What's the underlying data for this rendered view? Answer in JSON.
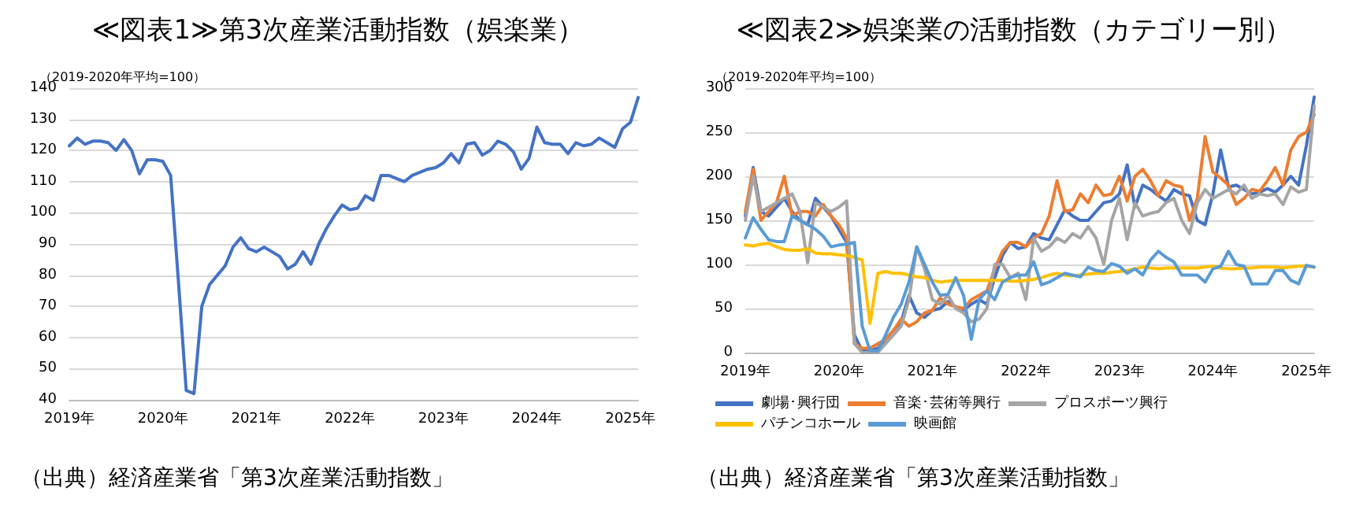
{
  "chart_data": [
    {
      "type": "line",
      "title": "≪図表1≫第3次産業活動指数（娯楽業）",
      "subtitle": "（2019-2020年平均=100）",
      "annotations": [
        "（出典）経済産業省「第3次産業活動指数」"
      ],
      "categories": [
        "2019年",
        null,
        null,
        null,
        null,
        null,
        null,
        null,
        null,
        null,
        null,
        null,
        "2020年",
        null,
        null,
        null,
        null,
        null,
        null,
        null,
        null,
        null,
        null,
        null,
        "2021年",
        null,
        null,
        null,
        null,
        null,
        null,
        null,
        null,
        null,
        null,
        null,
        "2022年",
        null,
        null,
        null,
        null,
        null,
        null,
        null,
        null,
        null,
        null,
        null,
        "2023年",
        null,
        null,
        null,
        null,
        null,
        null,
        null,
        null,
        null,
        null,
        null,
        "2024年",
        null,
        null,
        null,
        null,
        null,
        null,
        null,
        null,
        null,
        null,
        null,
        "2025年",
        null
      ],
      "series": [
        {
          "color": "#4472c4",
          "values": [
            121.5,
            124,
            122,
            123,
            123,
            122.5,
            120,
            123.5,
            120,
            112.5,
            117,
            117,
            116.5,
            112,
            78,
            43,
            42,
            70,
            77,
            80,
            83,
            89,
            92,
            88.5,
            87.5,
            89,
            87.5,
            86,
            82,
            83.5,
            87.5,
            83.5,
            90,
            95,
            99,
            102.5,
            101,
            101.5,
            105.5,
            104,
            112,
            112,
            111,
            110,
            112,
            113,
            114,
            114.5,
            116,
            119,
            116,
            122,
            122.5,
            118.5,
            120,
            123,
            122,
            119.5,
            114,
            117.5,
            127.5,
            122.5,
            122,
            122,
            119,
            122.5,
            121.5,
            122,
            124,
            122.5,
            121,
            127,
            129,
            137
          ]
        }
      ],
      "ylim": [
        40,
        140
      ],
      "yticks": [
        40,
        50,
        60,
        70,
        80,
        90,
        100,
        110,
        120,
        130,
        140
      ],
      "grid": "y",
      "legend": false,
      "marker": "none",
      "line_style": "solid"
    },
    {
      "type": "line",
      "title": "≪図表2≫娯楽業の活動指数（カテゴリー別）",
      "subtitle": "（2019-2020年平均=100）",
      "annotations": [
        "（出典）経済産業省「第3次産業活動指数」"
      ],
      "categories": [
        "2019年",
        null,
        null,
        null,
        null,
        null,
        null,
        null,
        null,
        null,
        null,
        null,
        "2020年",
        null,
        null,
        null,
        null,
        null,
        null,
        null,
        null,
        null,
        null,
        null,
        "2021年",
        null,
        null,
        null,
        null,
        null,
        null,
        null,
        null,
        null,
        null,
        null,
        "2022年",
        null,
        null,
        null,
        null,
        null,
        null,
        null,
        null,
        null,
        null,
        null,
        "2023年",
        null,
        null,
        null,
        null,
        null,
        null,
        null,
        null,
        null,
        null,
        null,
        "2024年",
        null,
        null,
        null,
        null,
        null,
        null,
        null,
        null,
        null,
        null,
        null,
        "2025年",
        null
      ],
      "series": [
        {
          "name": "劇場･興行団",
          "color": "#4472c4",
          "values": [
            155,
            210,
            160,
            155,
            165,
            175,
            160,
            150,
            145,
            175,
            165,
            155,
            140,
            125,
            20,
            2,
            2,
            5,
            15,
            25,
            35,
            65,
            45,
            40,
            48,
            50,
            58,
            52,
            48,
            55,
            60,
            55,
            85,
            110,
            125,
            118,
            120,
            135,
            130,
            128,
            145,
            162,
            155,
            150,
            150,
            160,
            170,
            172,
            180,
            213,
            165,
            190,
            185,
            178,
            172,
            185,
            180,
            178,
            150,
            145,
            180,
            230,
            188,
            190,
            185,
            180,
            182,
            186,
            182,
            190,
            200,
            190,
            235,
            290
          ]
        },
        {
          "name": "音楽･芸術等興行",
          "color": "#ed7d31",
          "values": [
            160,
            208,
            150,
            160,
            170,
            200,
            155,
            160,
            160,
            155,
            168,
            155,
            145,
            130,
            10,
            5,
            5,
            10,
            15,
            25,
            38,
            30,
            35,
            45,
            48,
            62,
            55,
            52,
            50,
            60,
            65,
            70,
            95,
            115,
            125,
            125,
            120,
            130,
            135,
            155,
            195,
            160,
            162,
            180,
            170,
            190,
            178,
            180,
            200,
            172,
            200,
            208,
            195,
            178,
            195,
            190,
            188,
            150,
            175,
            245,
            205,
            198,
            190,
            168,
            175,
            185,
            183,
            195,
            210,
            190,
            230,
            245,
            250,
            270
          ]
        },
        {
          "name": "プロスポーツ興行",
          "color": "#a5a5a5",
          "values": [
            150,
            200,
            160,
            165,
            170,
            175,
            180,
            160,
            102,
            170,
            165,
            160,
            165,
            172,
            10,
            0,
            0,
            0,
            10,
            20,
            30,
            60,
            120,
            95,
            60,
            55,
            65,
            50,
            45,
            35,
            38,
            50,
            100,
            100,
            85,
            90,
            60,
            130,
            115,
            120,
            130,
            125,
            135,
            130,
            143,
            130,
            100,
            150,
            175,
            128,
            170,
            155,
            158,
            160,
            170,
            175,
            150,
            135,
            170,
            185,
            175,
            180,
            185,
            180,
            190,
            175,
            180,
            178,
            180,
            168,
            188,
            182,
            185,
            280
          ]
        },
        {
          "name": "パチンコホール",
          "color": "#ffc000",
          "values": [
            122,
            121,
            123,
            124,
            120,
            117,
            116,
            116,
            118,
            113,
            112,
            112,
            111,
            110,
            108,
            105,
            33,
            90,
            92,
            90,
            90,
            88,
            86,
            85,
            82,
            80,
            81,
            82,
            82,
            82,
            82,
            82,
            82,
            82,
            81,
            81,
            82,
            83,
            85,
            88,
            90,
            88,
            87,
            88,
            89,
            90,
            90,
            91,
            92,
            93,
            95,
            97,
            96,
            95,
            96,
            96,
            96,
            96,
            96,
            97,
            98,
            96,
            95,
            95,
            96,
            96,
            97,
            97,
            97,
            96,
            97,
            98,
            98,
            97
          ]
        },
        {
          "name": "映画館",
          "color": "#5b9bd5",
          "values": [
            130,
            153,
            140,
            128,
            126,
            126,
            155,
            150,
            145,
            140,
            132,
            120,
            122,
            123,
            125,
            30,
            2,
            2,
            20,
            40,
            55,
            80,
            120,
            100,
            80,
            65,
            66,
            85,
            65,
            15,
            60,
            70,
            60,
            80,
            85,
            88,
            88,
            103,
            77,
            80,
            85,
            90,
            88,
            86,
            97,
            93,
            92,
            101,
            98,
            90,
            95,
            88,
            105,
            115,
            108,
            103,
            88,
            88,
            88,
            80,
            95,
            98,
            115,
            100,
            98,
            78,
            78,
            78,
            93,
            93,
            82,
            78,
            99,
            97
          ]
        }
      ],
      "ylim": [
        0,
        300
      ],
      "yticks": [
        0,
        50,
        100,
        150,
        200,
        250,
        300
      ],
      "grid": "y",
      "legend": "bottom",
      "marker": "none",
      "line_style": "solid"
    }
  ]
}
